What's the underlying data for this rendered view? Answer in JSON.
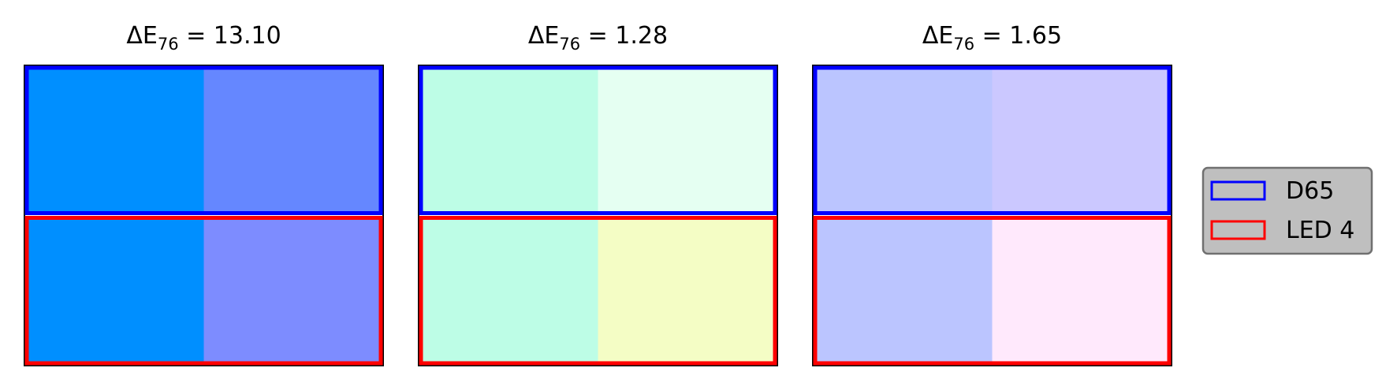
{
  "chart_data": {
    "type": "color-swatch-comparison",
    "metric_symbol": "ΔE",
    "metric_subscript": "76",
    "panels": [
      {
        "title": {
          "symbol": "ΔE",
          "subscript": "76",
          "value": "13.10"
        },
        "delta_e": 13.1,
        "rows": [
          {
            "series": "D65",
            "swatches": [
              "#008fff",
              "#6587ff"
            ]
          },
          {
            "series": "LED 4",
            "swatches": [
              "#008fff",
              "#7d8cff"
            ]
          }
        ]
      },
      {
        "title": {
          "symbol": "ΔE",
          "subscript": "76",
          "value": "1.28"
        },
        "delta_e": 1.28,
        "rows": [
          {
            "series": "D65",
            "swatches": [
              "#bdfde6",
              "#e5fff2"
            ]
          },
          {
            "series": "LED 4",
            "swatches": [
              "#bdfde6",
              "#f4fdc5"
            ]
          }
        ]
      },
      {
        "title": {
          "symbol": "ΔE",
          "subscript": "76",
          "value": "1.65"
        },
        "delta_e": 1.65,
        "rows": [
          {
            "series": "D65",
            "swatches": [
              "#bbc5ff",
              "#cbc8ff"
            ]
          },
          {
            "series": "LED 4",
            "swatches": [
              "#bbc5ff",
              "#ffe9fc"
            ]
          }
        ]
      }
    ],
    "legend": {
      "placement": "right",
      "entries": [
        {
          "label": "D65",
          "edge_color": "#0000ff"
        },
        {
          "label": "LED 4",
          "edge_color": "#ff0000"
        }
      ],
      "patch_face_color": "#bfbfbf",
      "frame_face_color": "#bfbfbf",
      "frame_edge_color": "#707070"
    },
    "grid": false,
    "axes_visible": false
  }
}
